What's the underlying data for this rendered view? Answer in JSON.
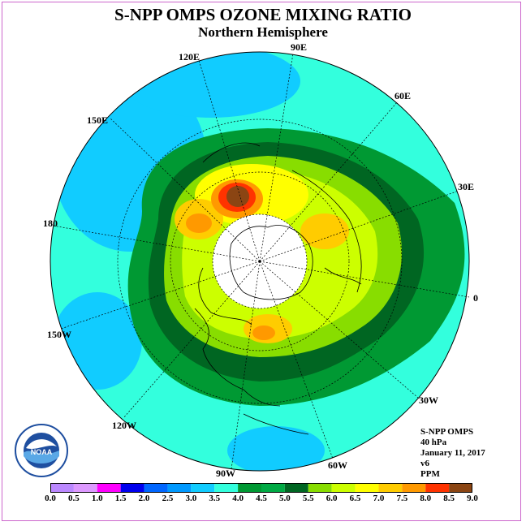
{
  "title": "S-NPP OMPS OZONE MIXING RATIO",
  "subtitle": "Northern Hemisphere",
  "lon_labels": [
    "90E",
    "60E",
    "30E",
    "0",
    "30W",
    "60W",
    "90W",
    "120W",
    "150W",
    "180",
    "150E",
    "120E"
  ],
  "info": {
    "instrument": "S-NPP OMPS",
    "level": "40 hPa",
    "date": "January 11, 2017",
    "version": "v6",
    "units": "PPM"
  },
  "logo": {
    "text": "NOAA"
  },
  "colorbar": {
    "ticks": [
      "0.0",
      "0.5",
      "1.0",
      "1.5",
      "2.0",
      "2.5",
      "3.0",
      "3.5",
      "4.0",
      "4.5",
      "5.0",
      "5.5",
      "6.0",
      "6.5",
      "7.0",
      "7.5",
      "8.0",
      "8.5",
      "9.0"
    ],
    "colors": [
      "#bb88ff",
      "#dd99ff",
      "#ff00ff",
      "#0000ee",
      "#0066ff",
      "#0099ff",
      "#11ccff",
      "#33ffdd",
      "#009933",
      "#00aa44",
      "#006622",
      "#88dd00",
      "#ccff00",
      "#ffff00",
      "#ffcc00",
      "#ff9900",
      "#ff3300",
      "#8b4513"
    ]
  }
}
